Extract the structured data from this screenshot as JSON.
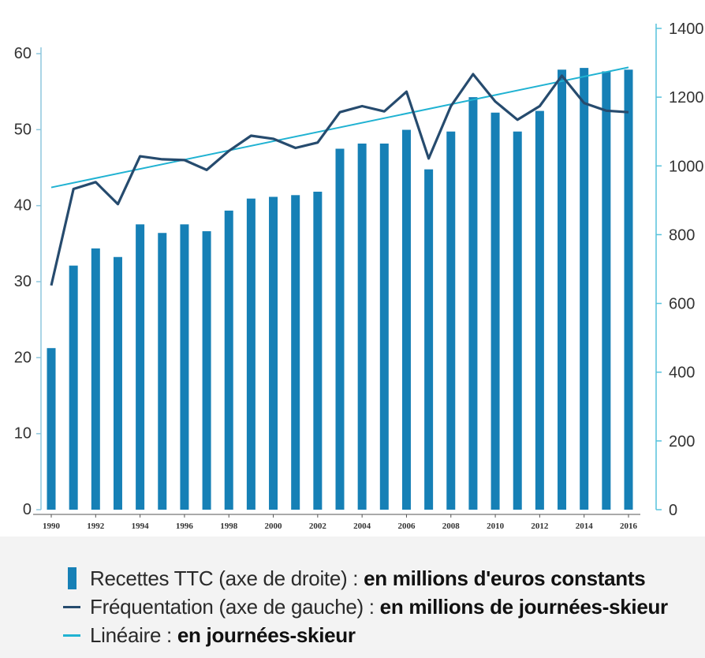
{
  "chart_data": {
    "type": "bar",
    "x": [
      1990,
      1991,
      1992,
      1993,
      1994,
      1995,
      1996,
      1997,
      1998,
      1999,
      2000,
      2001,
      2002,
      2003,
      2004,
      2005,
      2006,
      2007,
      2008,
      2009,
      2010,
      2011,
      2012,
      2013,
      2014,
      2015,
      2016
    ],
    "x_tick_labels": [
      "1990",
      "1992",
      "1994",
      "1996",
      "1998",
      "2000",
      "2002",
      "2004",
      "2006",
      "2008",
      "2010",
      "2012",
      "2014",
      "2016"
    ],
    "left_axis": {
      "ylim": [
        0,
        60
      ],
      "ticks": [
        "0",
        "10",
        "20",
        "30",
        "40",
        "50",
        "60"
      ]
    },
    "right_axis": {
      "ylim": [
        0,
        1400
      ],
      "ticks": [
        "0",
        "200",
        "400",
        "600",
        "800",
        "1000",
        "1200",
        "1400"
      ]
    },
    "series": [
      {
        "name": "Recettes TTC (axe de droite)",
        "type": "bar",
        "axis": "right",
        "color": "#1680b6",
        "values": [
          470,
          710,
          760,
          735,
          830,
          805,
          830,
          810,
          870,
          905,
          910,
          915,
          925,
          1050,
          1065,
          1065,
          1105,
          990,
          1100,
          1200,
          1155,
          1100,
          1160,
          1280,
          1285,
          1275,
          1280
        ]
      },
      {
        "name": "Fréquentation (axe de gauche)",
        "type": "line",
        "axis": "left",
        "color": "#264b6e",
        "values": [
          29.5,
          42.2,
          43.1,
          40.2,
          46.5,
          46.1,
          46.0,
          44.7,
          47.2,
          49.2,
          48.8,
          47.6,
          48.3,
          52.3,
          53.1,
          52.4,
          55.0,
          46.2,
          53.1,
          57.3,
          53.7,
          51.3,
          53.1,
          57.1,
          53.5,
          52.5,
          52.3
        ]
      },
      {
        "name": "Linéaire",
        "type": "line",
        "axis": "left",
        "color": "#20b2d2",
        "values": [
          42.4,
          58.2
        ],
        "x": [
          1990,
          2016
        ]
      }
    ],
    "grid": false
  },
  "legend": {
    "items": [
      {
        "text": "Recettes TTC (axe de droite) : ",
        "bold": "en millions d'euros constants"
      },
      {
        "text": "Fréquentation (axe de gauche) : ",
        "bold": "en millions de journées-skieur"
      },
      {
        "text": "Linéaire : ",
        "bold": "en journées-skieur"
      }
    ]
  },
  "colors": {
    "bar": "#1680b6",
    "line_dark": "#264b6e",
    "line_light": "#20b2d2",
    "axis_left": "#8ec7dd",
    "axis_right": "#57c2dc"
  }
}
